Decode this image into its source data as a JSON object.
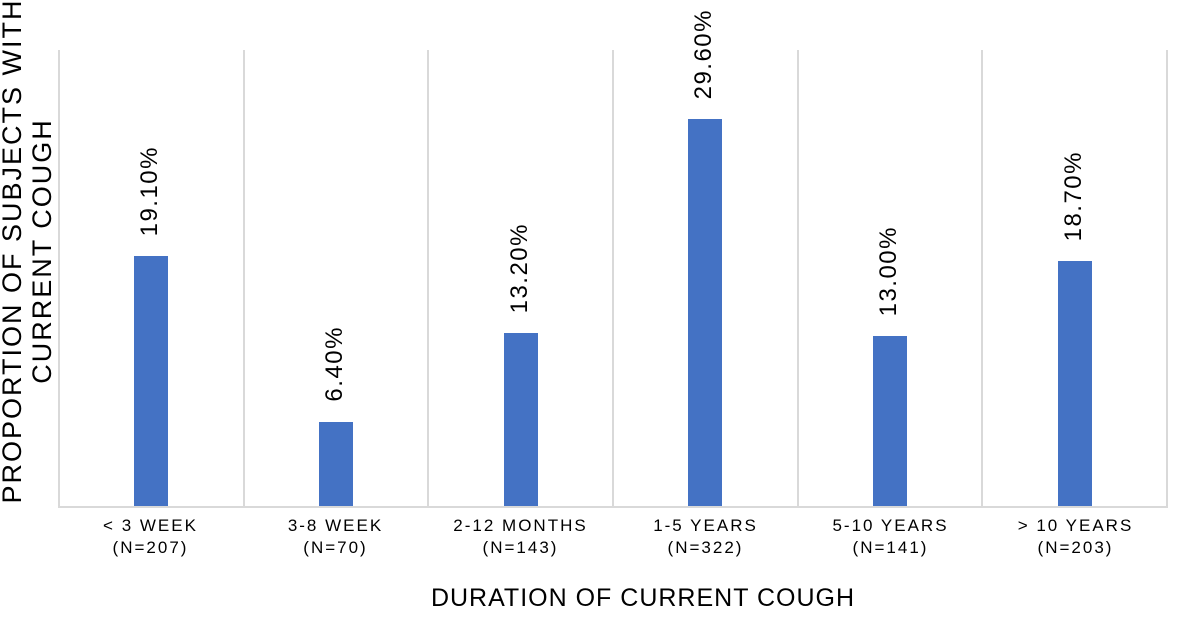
{
  "chart_data": {
    "type": "bar",
    "title": "",
    "xlabel": "DURATION OF CURRENT COUGH",
    "ylabel": "PROPORTION OF SUBJECTS WITH\nCURRENT COUGH",
    "categories": [
      "< 3 WEEK",
      "3-8 WEEK",
      "2-12 MONTHS",
      "1-5 YEARS",
      "5-10 YEARS",
      "> 10 YEARS"
    ],
    "n_labels": [
      "(N=207)",
      "(N=70)",
      "(N=143)",
      "(N=322)",
      "(N=141)",
      "(N=203)"
    ],
    "values": [
      19.1,
      6.4,
      13.2,
      29.6,
      13.0,
      18.7
    ],
    "value_labels": [
      "19.10%",
      "6.40%",
      "13.20%",
      "29.60%",
      "13.00%",
      "18.70%"
    ],
    "ylim": [
      0,
      35
    ],
    "grid": "vertical category separators, no horizontal gridlines, no y-axis tick labels",
    "legend": "none",
    "bar_color": "#4472C4",
    "gridline_color": "#D9D9D9",
    "text_color": "#000000",
    "label_rotation": "value labels rotated 90deg (reading bottom to top)"
  }
}
